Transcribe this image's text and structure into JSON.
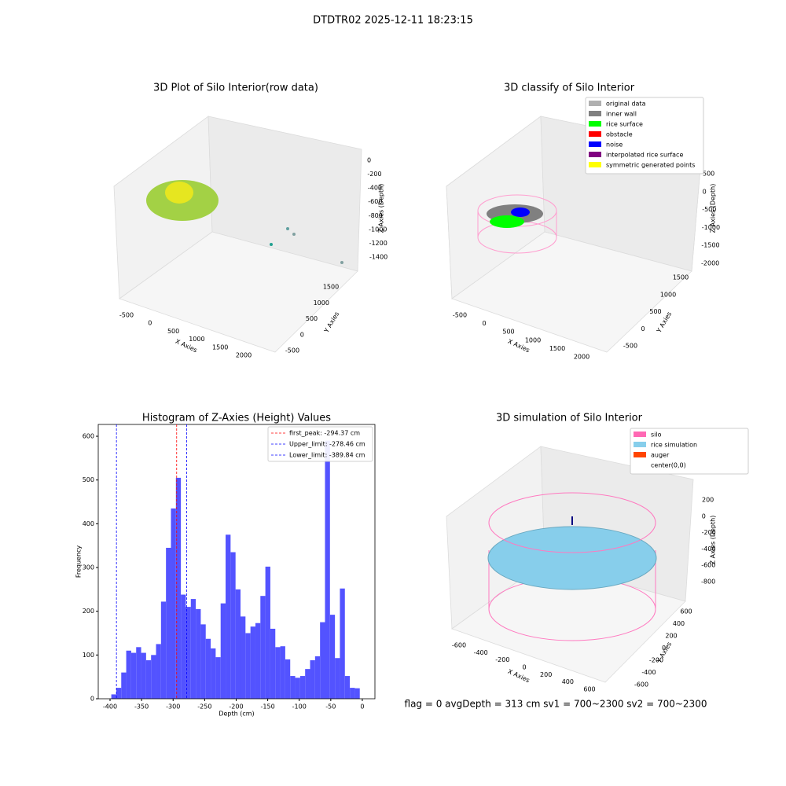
{
  "title": "DTDTR02 2025-12-11 18:23:15",
  "status_text": "flag = 0     avgDepth = 313 cm  sv1 = 700~2300  sv2 = 700~2300",
  "chart_data": [
    {
      "type": "scatter3d",
      "title": "3D Plot of Silo Interior(row data)",
      "x_label": "X Axies",
      "y_label": "Y Axies",
      "z_label": "Z Axies (Depth)",
      "xticks": [
        -500,
        0,
        500,
        1000,
        1500,
        2000
      ],
      "yticks": [
        -500,
        0,
        500,
        1000,
        1500
      ],
      "zticks": [
        0,
        -200,
        -400,
        -600,
        -800,
        -1000,
        -1200,
        -1400
      ]
    },
    {
      "type": "scatter3d",
      "title": "3D classify of Silo Interior",
      "x_label": "X Axies",
      "y_label": "Y Axies",
      "z_label": "Z Axies (Depth)",
      "xticks": [
        -500,
        0,
        500,
        1000,
        1500,
        2000
      ],
      "yticks": [
        -500,
        0,
        500,
        1000,
        1500
      ],
      "zticks": [
        500,
        0,
        -500,
        -1000,
        -1500,
        -2000
      ],
      "series": [
        {
          "name": "original data",
          "color": "#b0b0b0"
        },
        {
          "name": "inner wall",
          "color": "#808080"
        },
        {
          "name": "rice surface",
          "color": "#00ff00"
        },
        {
          "name": "obstacle",
          "color": "#ff0000"
        },
        {
          "name": "noise",
          "color": "#0000ff"
        },
        {
          "name": "interpolated rice surface",
          "color": "#800080"
        },
        {
          "name": "symmetric generated points",
          "color": "#ffff00"
        }
      ]
    },
    {
      "type": "histogram",
      "title": "Histogram of Z-Axies (Height) Values",
      "x_label": "Depth (cm)",
      "y_label": "Frequency",
      "color": "#5050ff",
      "bins": [
        -398,
        -390.12,
        -382.24,
        -374.36,
        -366.48,
        -358.6,
        -350.72,
        -342.84,
        -334.96,
        -327.08,
        -319.2,
        -311.32,
        -303.44,
        -295.56,
        -287.68,
        -279.8,
        -271.92,
        -264.04,
        -256.16,
        -248.28,
        -240.4,
        -232.52,
        -224.64,
        -216.76,
        -208.88,
        -201,
        -193.12,
        -185.24,
        -177.36,
        -169.48,
        -161.6,
        -153.72,
        -145.84,
        -137.96,
        -130.08,
        -122.2,
        -114.32,
        -106.44,
        -98.56,
        -90.68,
        -82.8,
        -74.92,
        -67.04,
        -59.16,
        -51.28,
        -43.4,
        -35.52,
        -27.64,
        -19.76,
        -11.88,
        -4
      ],
      "counts": [
        10,
        25,
        60,
        110,
        105,
        118,
        105,
        88,
        100,
        125,
        222,
        345,
        435,
        505,
        238,
        210,
        228,
        205,
        170,
        137,
        115,
        95,
        218,
        375,
        335,
        250,
        188,
        150,
        165,
        173,
        235,
        302,
        160,
        118,
        120,
        90,
        52,
        48,
        52,
        68,
        88,
        97,
        175,
        590,
        192,
        93,
        252,
        52,
        25,
        24
      ],
      "xlim": [
        -418.7,
        20
      ],
      "ylim": [
        0,
        627
      ],
      "xticks": [
        -400,
        -350,
        -300,
        -250,
        -200,
        -150,
        -100,
        -50,
        0
      ],
      "yticks": [
        0,
        100,
        200,
        300,
        400,
        500,
        600
      ],
      "vlines": [
        {
          "label": "first_peak: -294.37 cm",
          "value": -294.37,
          "color": "#ff0000"
        },
        {
          "label": "Upper_limit: -278.46 cm",
          "value": -278.46,
          "color": "#0000ff"
        },
        {
          "label": "Lower_limit: -389.84 cm",
          "value": -389.84,
          "color": "#0000ff"
        }
      ]
    },
    {
      "type": "scatter3d",
      "title": "3D simulation of Silo Interior",
      "x_label": "X Axies",
      "y_label": "Y Axies",
      "z_label": "Z Axies (Depth)",
      "xticks": [
        -600,
        -400,
        -200,
        0,
        200,
        400,
        600
      ],
      "yticks": [
        -600,
        -400,
        -200,
        0,
        200,
        400,
        600
      ],
      "zticks": [
        200,
        0,
        -200,
        -400,
        -600,
        -800
      ],
      "series": [
        {
          "name": "silo",
          "color": "#ff69b4"
        },
        {
          "name": "rice simulation",
          "color": "#87ceeb"
        },
        {
          "name": "auger",
          "color": "#ff4500"
        },
        {
          "name": "center(0,0)",
          "color": "#ffffff"
        }
      ]
    }
  ]
}
